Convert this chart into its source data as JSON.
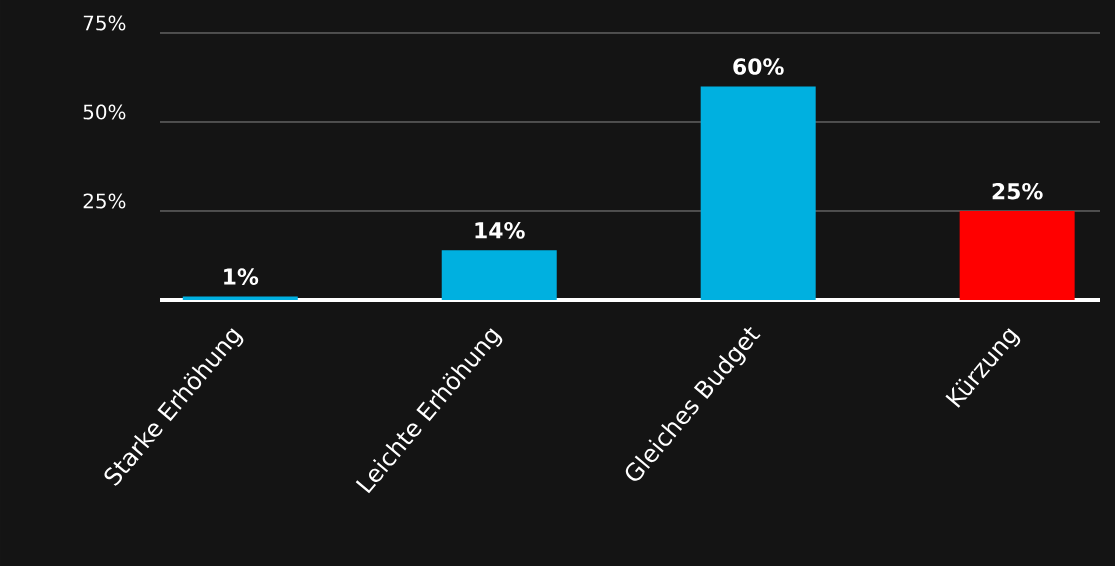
{
  "chart_data": {
    "type": "bar",
    "categories": [
      "Starke Erhöhung",
      "Leichte Erhöhung",
      "Gleiches Budget",
      "Kürzung"
    ],
    "values": [
      1,
      14,
      60,
      25
    ],
    "colors": [
      "#00b0e0",
      "#00b0e0",
      "#00b0e0",
      "#ff0000"
    ],
    "value_labels": [
      "1%",
      "14%",
      "60%",
      "25%"
    ],
    "ylim": [
      0,
      75
    ],
    "yticks": [
      {
        "value": 0,
        "label": null
      },
      {
        "value": 25,
        "label": "25%"
      },
      {
        "value": 50,
        "label": "50%"
      },
      {
        "value": 75,
        "label": "75%"
      }
    ],
    "grid": "y"
  }
}
